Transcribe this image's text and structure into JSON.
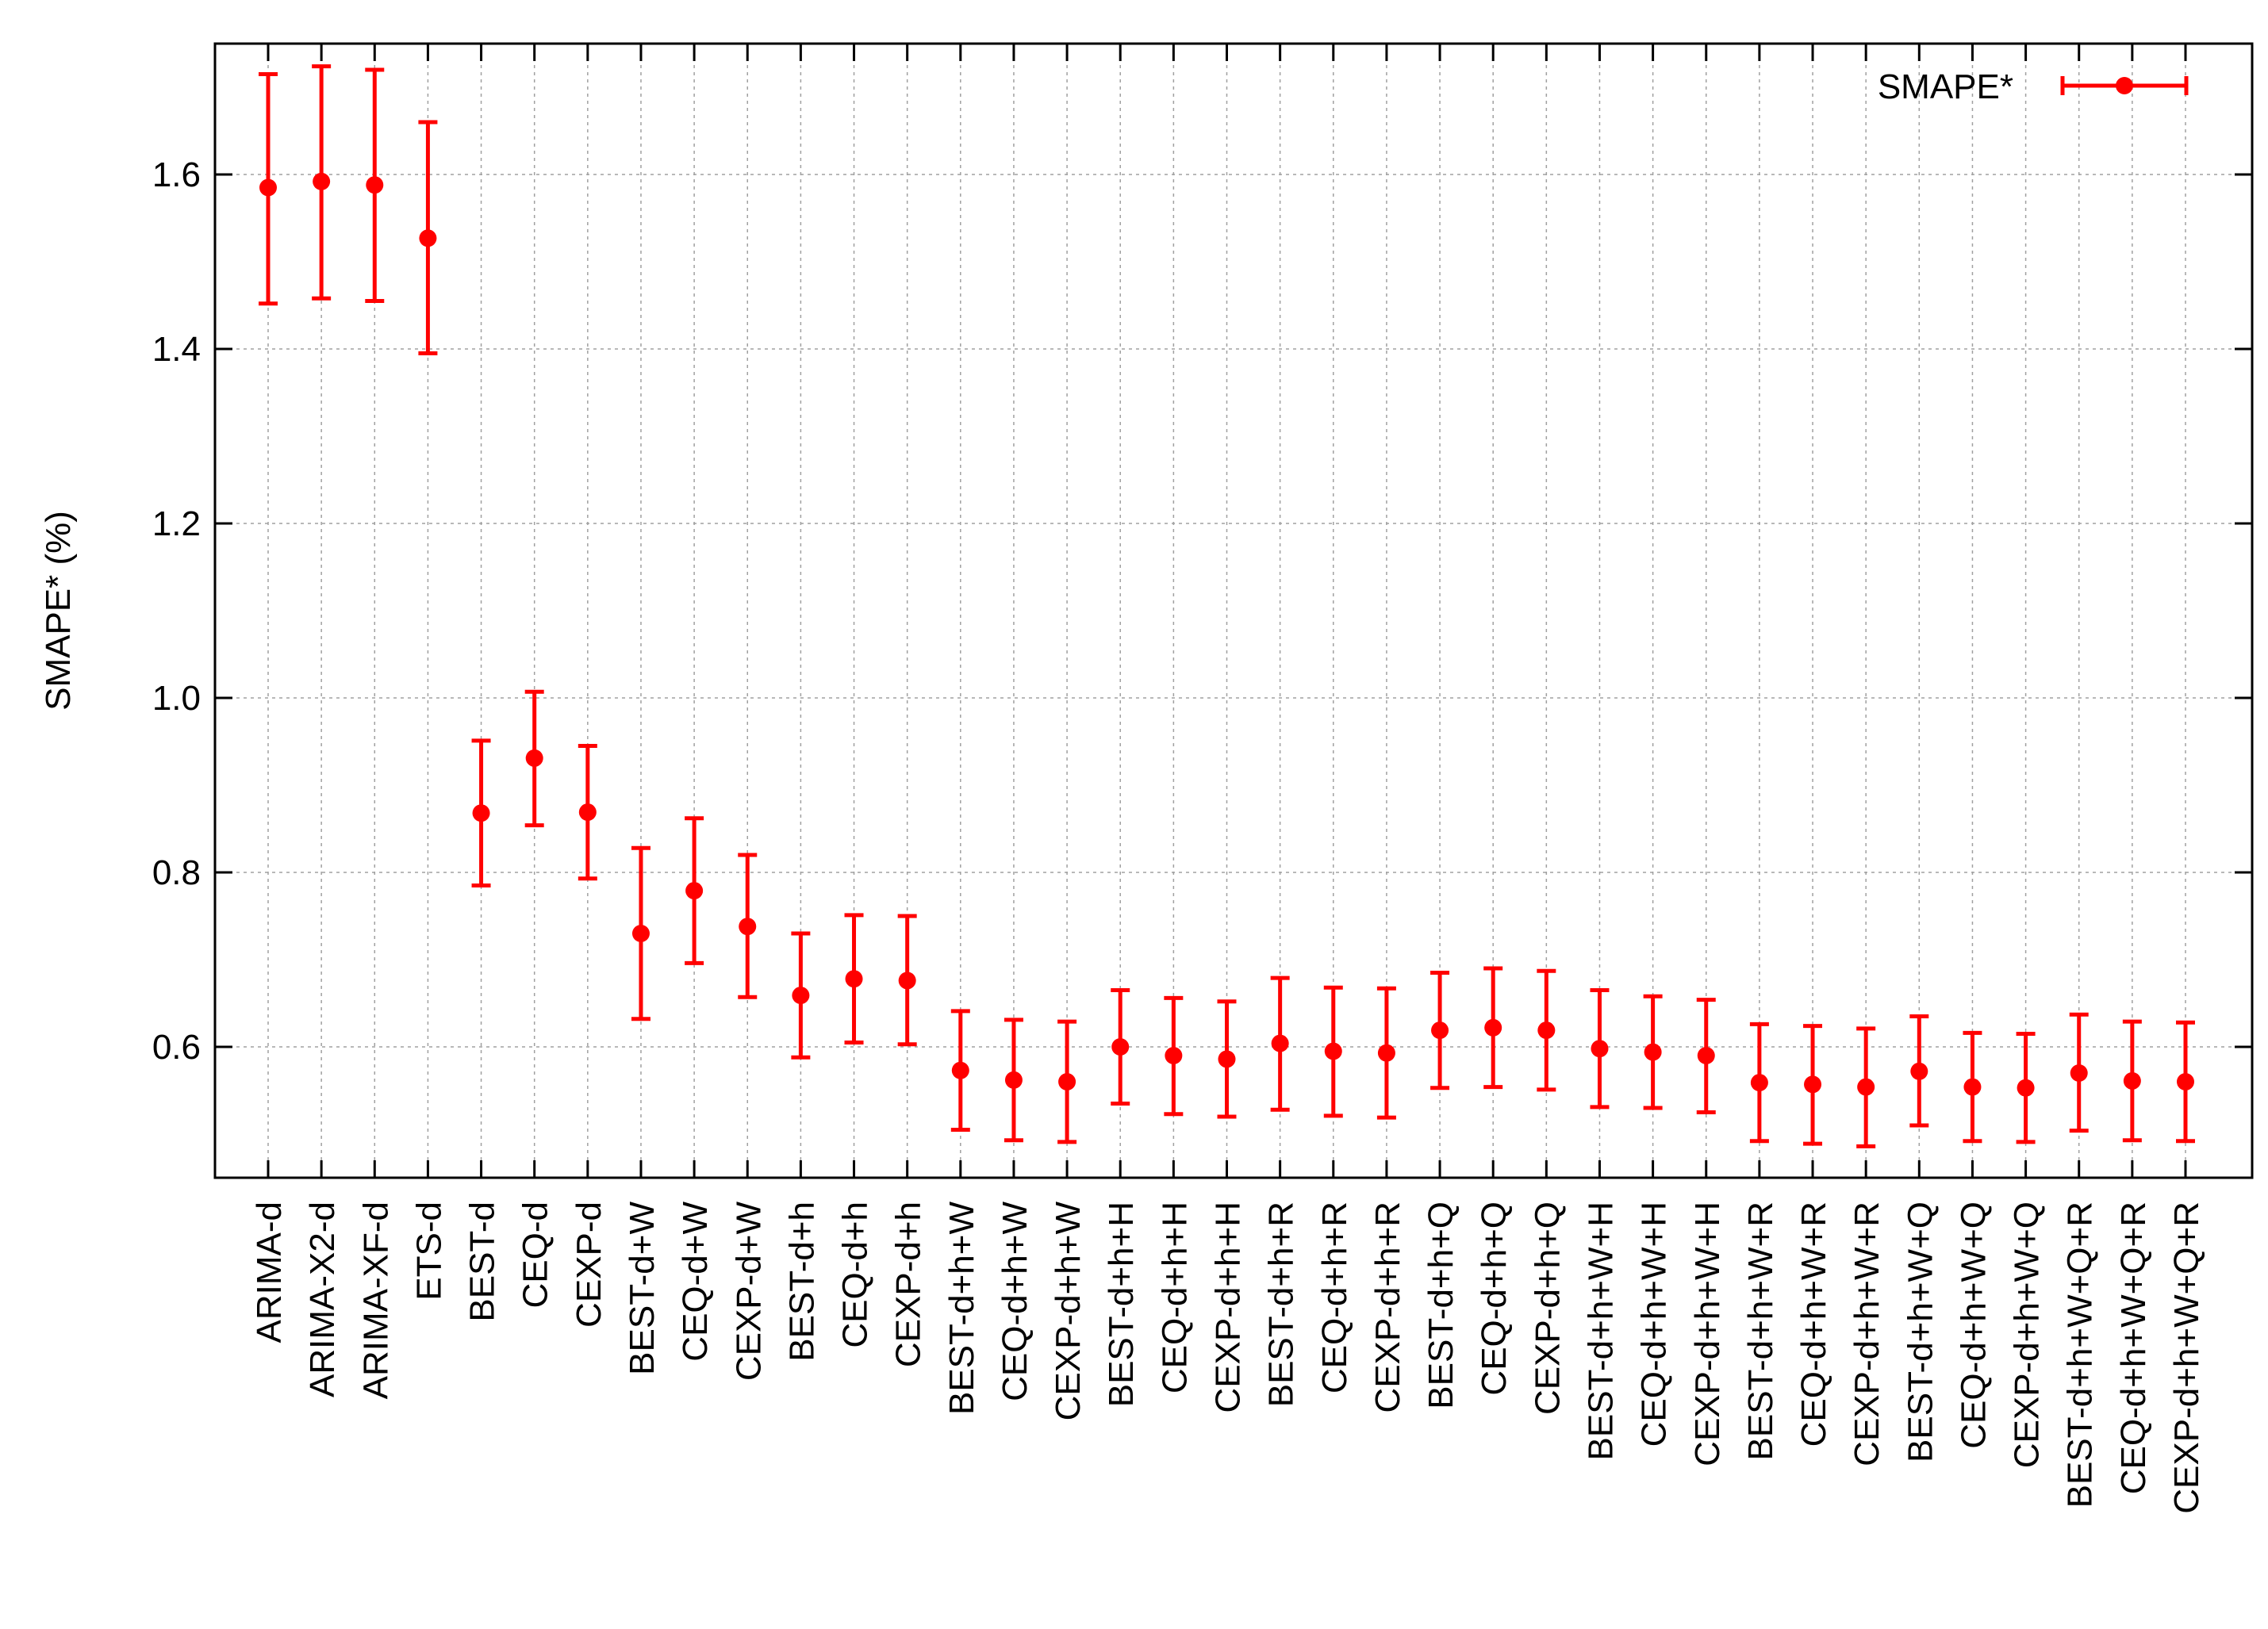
{
  "chart_data": {
    "type": "scatter",
    "title": "",
    "xlabel": "",
    "ylabel": "SMAPE* (%)",
    "ylim": [
      0.45,
      1.75
    ],
    "yticks": [
      "0.6",
      "0.8",
      "1.0",
      "1.2",
      "1.4",
      "1.6"
    ],
    "grid": true,
    "legend_position": "top-right",
    "series": [
      {
        "name": "SMAPE*",
        "color": "#ff0000",
        "error_bars": true,
        "points": [
          {
            "x": "ARIMA-d",
            "y": 1.585,
            "low": 1.452,
            "high": 1.715
          },
          {
            "x": "ARIMA-X2-d",
            "y": 1.592,
            "low": 1.458,
            "high": 1.724
          },
          {
            "x": "ARIMA-XF-d",
            "y": 1.588,
            "low": 1.455,
            "high": 1.72
          },
          {
            "x": "ETS-d",
            "y": 1.527,
            "low": 1.395,
            "high": 1.66
          },
          {
            "x": "BEST-d",
            "y": 0.868,
            "low": 0.785,
            "high": 0.951
          },
          {
            "x": "CEQ-d",
            "y": 0.931,
            "low": 0.854,
            "high": 1.007
          },
          {
            "x": "CEXP-d",
            "y": 0.869,
            "low": 0.793,
            "high": 0.945
          },
          {
            "x": "BEST-d+W",
            "y": 0.73,
            "low": 0.632,
            "high": 0.828
          },
          {
            "x": "CEQ-d+W",
            "y": 0.779,
            "low": 0.696,
            "high": 0.862
          },
          {
            "x": "CEXP-d+W",
            "y": 0.738,
            "low": 0.657,
            "high": 0.82
          },
          {
            "x": "BEST-d+h",
            "y": 0.659,
            "low": 0.588,
            "high": 0.73
          },
          {
            "x": "CEQ-d+h",
            "y": 0.678,
            "low": 0.605,
            "high": 0.751
          },
          {
            "x": "CEXP-d+h",
            "y": 0.676,
            "low": 0.603,
            "high": 0.75
          },
          {
            "x": "BEST-d+h+W",
            "y": 0.573,
            "low": 0.505,
            "high": 0.641
          },
          {
            "x": "CEQ-d+h+W",
            "y": 0.562,
            "low": 0.493,
            "high": 0.631
          },
          {
            "x": "CEXP-d+h+W",
            "y": 0.56,
            "low": 0.491,
            "high": 0.629
          },
          {
            "x": "BEST-d+h+H",
            "y": 0.6,
            "low": 0.535,
            "high": 0.665
          },
          {
            "x": "CEQ-d+h+H",
            "y": 0.59,
            "low": 0.523,
            "high": 0.656
          },
          {
            "x": "CEXP-d+h+H",
            "y": 0.586,
            "low": 0.52,
            "high": 0.652
          },
          {
            "x": "BEST-d+h+R",
            "y": 0.604,
            "low": 0.528,
            "high": 0.679
          },
          {
            "x": "CEQ-d+h+R",
            "y": 0.595,
            "low": 0.521,
            "high": 0.668
          },
          {
            "x": "CEXP-d+h+R",
            "y": 0.593,
            "low": 0.519,
            "high": 0.667
          },
          {
            "x": "BEST-d+h+Q",
            "y": 0.619,
            "low": 0.553,
            "high": 0.685
          },
          {
            "x": "CEQ-d+h+Q",
            "y": 0.622,
            "low": 0.554,
            "high": 0.69
          },
          {
            "x": "CEXP-d+h+Q",
            "y": 0.619,
            "low": 0.551,
            "high": 0.687
          },
          {
            "x": "BEST-d+h+W+H",
            "y": 0.598,
            "low": 0.531,
            "high": 0.665
          },
          {
            "x": "CEQ-d+h+W+H",
            "y": 0.594,
            "low": 0.53,
            "high": 0.658
          },
          {
            "x": "CEXP-d+h+W+H",
            "y": 0.59,
            "low": 0.525,
            "high": 0.654
          },
          {
            "x": "BEST-d+h+W+R",
            "y": 0.559,
            "low": 0.492,
            "high": 0.626
          },
          {
            "x": "CEQ-d+h+W+R",
            "y": 0.557,
            "low": 0.489,
            "high": 0.624
          },
          {
            "x": "CEXP-d+h+W+R",
            "y": 0.554,
            "low": 0.486,
            "high": 0.621
          },
          {
            "x": "BEST-d+h+W+Q",
            "y": 0.572,
            "low": 0.51,
            "high": 0.635
          },
          {
            "x": "CEQ-d+h+W+Q",
            "y": 0.554,
            "low": 0.492,
            "high": 0.616
          },
          {
            "x": "CEXP-d+h+W+Q",
            "y": 0.553,
            "low": 0.491,
            "high": 0.615
          },
          {
            "x": "BEST-d+h+W+Q+R",
            "y": 0.57,
            "low": 0.504,
            "high": 0.637
          },
          {
            "x": "CEQ-d+h+W+Q+R",
            "y": 0.561,
            "low": 0.493,
            "high": 0.629
          },
          {
            "x": "CEXP-d+h+W+Q+R",
            "y": 0.56,
            "low": 0.492,
            "high": 0.628
          }
        ]
      }
    ]
  }
}
